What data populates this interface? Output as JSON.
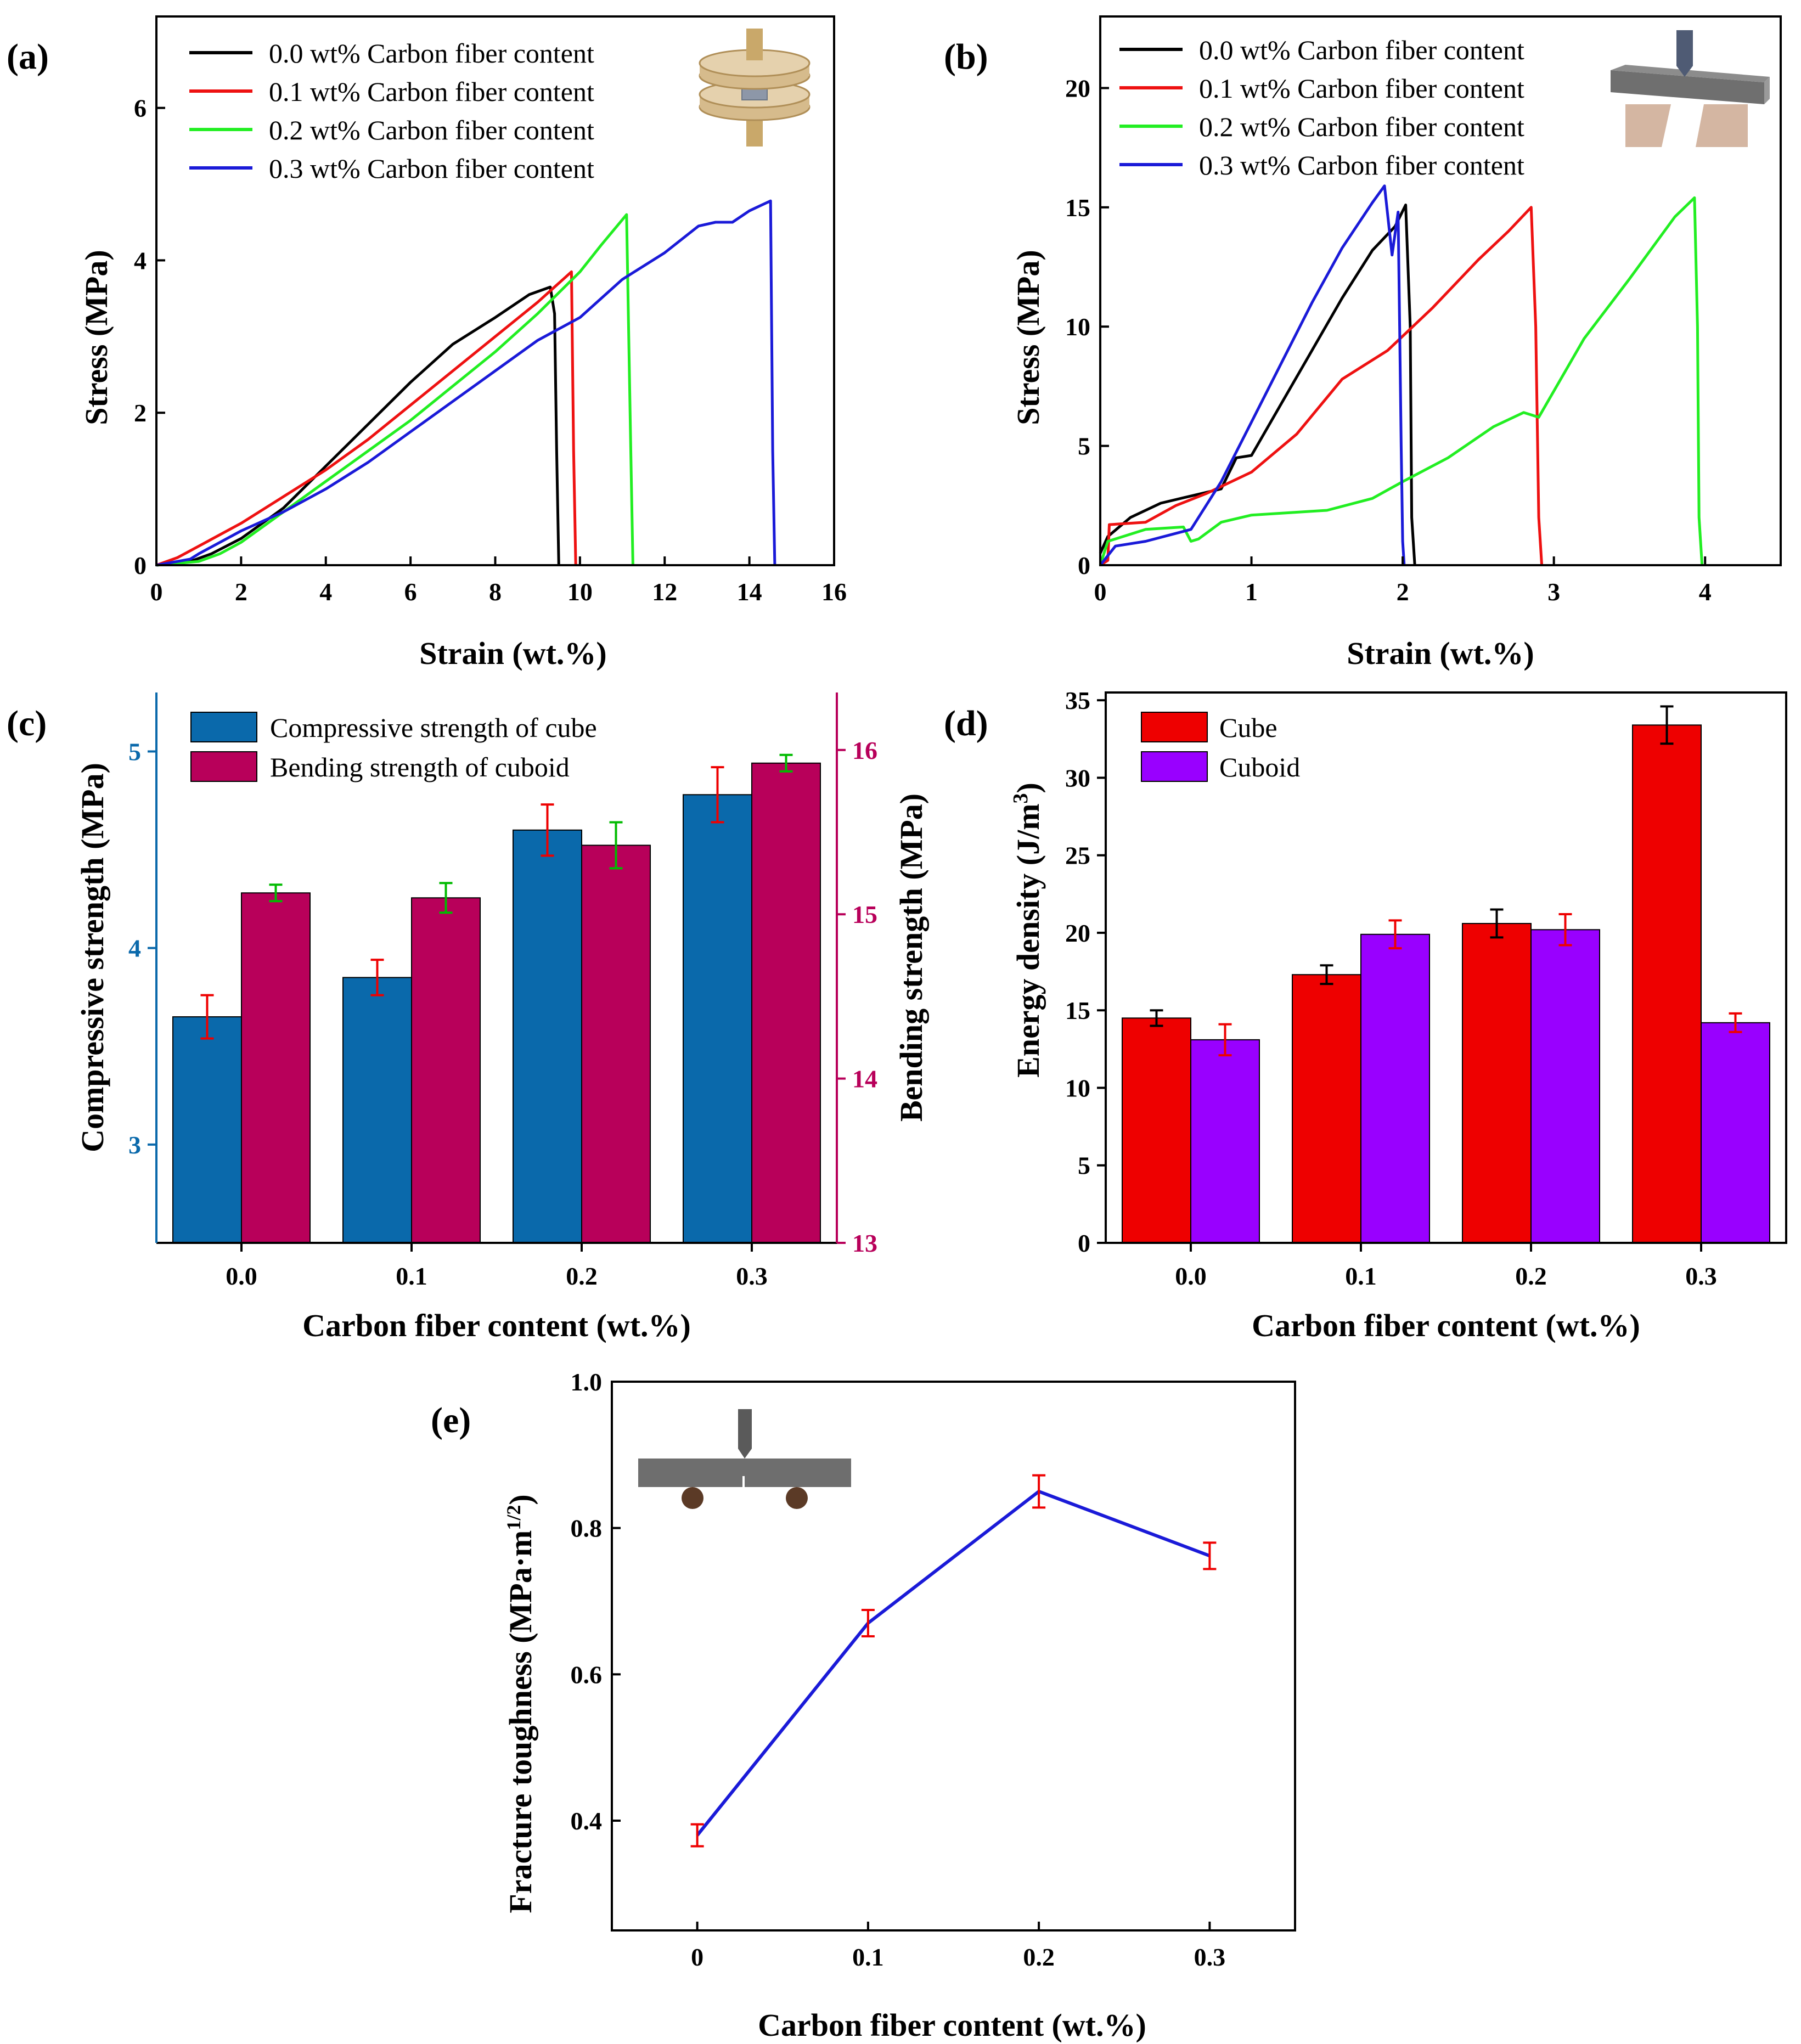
{
  "colors": {
    "black": "#000000",
    "red": "#ee1111",
    "green": "#22ee22",
    "blue": "#1a1ad8",
    "cube_blue": "#0a69ab",
    "cuboid_crimson": "#b8005a",
    "energy_red": "#ee0000",
    "energy_purple": "#9900ff",
    "err_red": "#ee0000",
    "err_green": "#00bb00",
    "err_black": "#000000"
  },
  "chart_data": [
    {
      "panel": "(a)",
      "type": "line",
      "xlabel": "Strain (wt.%)",
      "ylabel": "Stress (MPa)",
      "xlim": [
        0,
        16
      ],
      "ylim": [
        0,
        7.2
      ],
      "xticks": [
        0,
        2,
        4,
        6,
        8,
        10,
        12,
        14,
        16
      ],
      "yticks": [
        0,
        2,
        4,
        6
      ],
      "inset": "compression-cube-icon",
      "legend_position": "top-left",
      "series": [
        {
          "name": "0.0 wt% Carbon fiber content",
          "color": "#000000",
          "x": [
            0,
            0.8,
            1.3,
            2,
            3,
            4,
            5,
            6,
            7,
            8,
            8.8,
            9.3,
            9.4,
            9.45,
            9.5
          ],
          "y": [
            0,
            0.05,
            0.15,
            0.35,
            0.75,
            1.3,
            1.85,
            2.4,
            2.9,
            3.25,
            3.55,
            3.65,
            3.3,
            1.5,
            0
          ]
        },
        {
          "name": "0.1 wt% Carbon fiber content",
          "color": "#ee1111",
          "x": [
            0,
            0.5,
            1,
            2,
            3,
            4,
            5,
            6,
            7,
            8,
            9,
            9.6,
            9.8,
            9.85,
            9.9
          ],
          "y": [
            0,
            0.1,
            0.25,
            0.55,
            0.9,
            1.25,
            1.65,
            2.1,
            2.55,
            3.0,
            3.45,
            3.75,
            3.85,
            1.5,
            0
          ]
        },
        {
          "name": "0.2 wt% Carbon fiber content",
          "color": "#22ee22",
          "x": [
            0,
            1,
            1.5,
            2,
            3,
            4,
            5,
            6,
            7,
            8,
            9,
            10,
            10.5,
            11.1,
            11.2,
            11.25
          ],
          "y": [
            0,
            0.05,
            0.15,
            0.3,
            0.7,
            1.1,
            1.5,
            1.9,
            2.35,
            2.8,
            3.3,
            3.85,
            4.2,
            4.6,
            1.5,
            0
          ]
        },
        {
          "name": "0.3 wt% Carbon fiber content",
          "color": "#1a1ad8",
          "x": [
            0,
            0.8,
            1,
            2,
            3,
            4,
            5,
            6,
            7,
            8,
            9,
            10,
            11,
            12,
            12.8,
            13.2,
            13.6,
            14,
            14.5,
            14.55,
            14.6
          ],
          "y": [
            0,
            0.08,
            0.15,
            0.45,
            0.7,
            1.0,
            1.35,
            1.75,
            2.15,
            2.55,
            2.95,
            3.25,
            3.75,
            4.1,
            4.45,
            4.5,
            4.5,
            4.65,
            4.78,
            1.5,
            0
          ]
        }
      ]
    },
    {
      "panel": "(b)",
      "type": "line",
      "xlabel": "Strain (wt.%)",
      "ylabel": "Stress (MPa)",
      "xlim": [
        0,
        4.5
      ],
      "ylim": [
        0,
        23
      ],
      "xticks": [
        0,
        1,
        2,
        3,
        4
      ],
      "yticks": [
        0,
        5,
        10,
        15,
        20
      ],
      "inset": "three-point-bending-icon",
      "legend_position": "top-left",
      "series": [
        {
          "name": "0.0 wt% Carbon fiber content",
          "color": "#000000",
          "x": [
            0,
            0.05,
            0.2,
            0.4,
            0.6,
            0.8,
            0.9,
            1.0,
            1.2,
            1.4,
            1.6,
            1.8,
            1.95,
            2.02,
            2.05,
            2.06,
            2.08
          ],
          "y": [
            0.5,
            1.2,
            2.0,
            2.6,
            2.9,
            3.2,
            4.5,
            4.6,
            6.8,
            9.0,
            11.2,
            13.2,
            14.2,
            15.1,
            10.0,
            2.0,
            0
          ]
        },
        {
          "name": "0.1 wt% Carbon fiber content",
          "color": "#ee1111",
          "x": [
            0,
            0.05,
            0.06,
            0.3,
            0.5,
            0.7,
            1.0,
            1.3,
            1.6,
            1.9,
            2.2,
            2.5,
            2.7,
            2.85,
            2.88,
            2.9,
            2.92
          ],
          "y": [
            0,
            0.2,
            1.7,
            1.8,
            2.5,
            3.0,
            3.9,
            5.5,
            7.8,
            9.0,
            10.8,
            12.8,
            14.0,
            15.0,
            10.0,
            2.0,
            0
          ]
        },
        {
          "name": "0.2 wt% Carbon fiber content",
          "color": "#22ee22",
          "x": [
            0,
            0.05,
            0.3,
            0.55,
            0.6,
            0.65,
            0.8,
            1.0,
            1.5,
            1.8,
            2.0,
            2.3,
            2.6,
            2.8,
            2.9,
            3.2,
            3.5,
            3.8,
            3.93,
            3.95,
            3.96,
            3.98
          ],
          "y": [
            0,
            1.0,
            1.5,
            1.6,
            1.0,
            1.1,
            1.8,
            2.1,
            2.3,
            2.8,
            3.5,
            4.5,
            5.8,
            6.4,
            6.2,
            9.5,
            12.0,
            14.6,
            15.4,
            10.0,
            2.0,
            0
          ]
        },
        {
          "name": "0.3 wt% Carbon fiber content",
          "color": "#1a1ad8",
          "x": [
            0,
            0.1,
            0.3,
            0.6,
            0.8,
            1.0,
            1.2,
            1.4,
            1.6,
            1.8,
            1.88,
            1.93,
            1.97,
            1.98,
            1.99,
            2.0,
            2.01
          ],
          "y": [
            0,
            0.8,
            1.0,
            1.5,
            3.5,
            6.0,
            8.5,
            11.0,
            13.3,
            15.2,
            15.9,
            13.0,
            14.8,
            10.0,
            5.0,
            1.0,
            0
          ]
        }
      ]
    },
    {
      "panel": "(c)",
      "type": "bar",
      "xlabel": "Carbon fiber content (wt.%)",
      "ylabel_left": "Compressive strength (MPa)",
      "ylabel_right": "Bending strength (MPa)",
      "categories": [
        "0.0",
        "0.1",
        "0.2",
        "0.3"
      ],
      "ylim_left": [
        2.5,
        5.3
      ],
      "yticks_left": [
        3,
        4,
        5
      ],
      "ylim_right": [
        13,
        16.35
      ],
      "yticks_right": [
        13,
        14,
        15,
        16
      ],
      "legend_position": "top-left",
      "series": [
        {
          "name": "Compressive strength of cube",
          "axis": "left",
          "color": "#0a69ab",
          "err_color": "#ee0000",
          "values": [
            3.65,
            3.85,
            4.6,
            4.78
          ],
          "errors": [
            0.11,
            0.09,
            0.13,
            0.14
          ]
        },
        {
          "name": "Bending strength of cuboid",
          "axis": "right",
          "color": "#b8005a",
          "err_color": "#00bb00",
          "values": [
            15.13,
            15.1,
            15.42,
            15.92
          ],
          "errors": [
            0.05,
            0.09,
            0.14,
            0.05
          ]
        }
      ]
    },
    {
      "panel": "(d)",
      "type": "bar",
      "xlabel": "Carbon fiber content (wt.%)",
      "ylabel": "Energy density (J/m³)",
      "categories": [
        "0.0",
        "0.1",
        "0.2",
        "0.3"
      ],
      "ylim": [
        0,
        35.5
      ],
      "yticks": [
        0,
        5,
        10,
        15,
        20,
        25,
        30,
        35
      ],
      "legend_position": "top-left",
      "series": [
        {
          "name": "Cube",
          "color": "#ee0000",
          "err_color": "#000000",
          "values": [
            14.5,
            17.3,
            20.6,
            33.4
          ],
          "errors": [
            0.5,
            0.6,
            0.9,
            1.2
          ]
        },
        {
          "name": "Cuboid",
          "color": "#9900ff",
          "err_color": "#ee0000",
          "values": [
            13.1,
            19.9,
            20.2,
            14.2
          ],
          "errors": [
            1.0,
            0.9,
            1.0,
            0.6
          ]
        }
      ]
    },
    {
      "panel": "(e)",
      "type": "line",
      "xlabel": "Carbon fiber content (wt.%)",
      "ylabel": "Fracture toughness (MPa·m1/2)",
      "xlim": [
        -0.05,
        0.35
      ],
      "ylim": [
        0.25,
        1.0
      ],
      "xticks": [
        0,
        0.1,
        0.2,
        0.3
      ],
      "xticklabels": [
        "0",
        "0.1",
        "0.2",
        "0.3"
      ],
      "yticks": [
        0.4,
        0.6,
        0.8,
        1.0
      ],
      "yticklabels": [
        "0.4",
        "0.6",
        "0.8",
        "1.0"
      ],
      "inset": "notched-beam-icon",
      "series": [
        {
          "name": "Fracture toughness",
          "color": "#1a1ad8",
          "err_color": "#ee0000",
          "x": [
            0,
            0.1,
            0.2,
            0.3
          ],
          "y": [
            0.38,
            0.67,
            0.85,
            0.762
          ],
          "errors": [
            0.015,
            0.018,
            0.022,
            0.018
          ]
        }
      ]
    }
  ]
}
